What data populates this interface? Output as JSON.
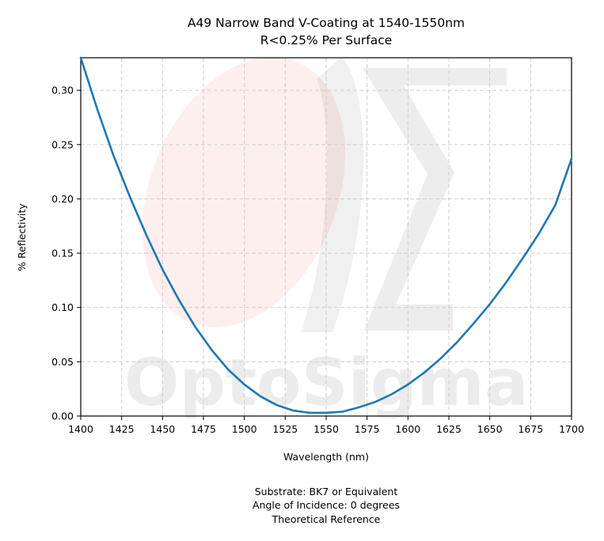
{
  "chart_data": {
    "type": "line",
    "title": [
      "A49 Narrow Band V-Coating at 1540-1550nm",
      "R<0.25% Per Surface"
    ],
    "xlabel": "Wavelength (nm)",
    "ylabel": "% Reflectivity",
    "xlim": [
      1400,
      1700
    ],
    "ylim": [
      0,
      0.33
    ],
    "xticks": [
      1400,
      1425,
      1450,
      1475,
      1500,
      1525,
      1550,
      1575,
      1600,
      1625,
      1650,
      1675,
      1700
    ],
    "xtick_labels": [
      "1400",
      "1425",
      "1450",
      "1475",
      "1500",
      "1525",
      "1550",
      "1575",
      "1600",
      "1625",
      "1650",
      "1675",
      "1700"
    ],
    "yticks": [
      0,
      0.05,
      0.1,
      0.15,
      0.2,
      0.25,
      0.3
    ],
    "ytick_labels": [
      "0.00",
      "0.05",
      "0.10",
      "0.15",
      "0.20",
      "0.25",
      "0.30"
    ],
    "grid": true,
    "series": [
      {
        "color": "#1f77b4",
        "x": [
          1400,
          1410,
          1420,
          1430,
          1440,
          1450,
          1460,
          1470,
          1480,
          1490,
          1500,
          1510,
          1520,
          1530,
          1540,
          1550,
          1560,
          1570,
          1580,
          1590,
          1600,
          1610,
          1620,
          1630,
          1640,
          1650,
          1660,
          1670,
          1680,
          1690,
          1700
        ],
        "y": [
          0.33,
          0.283,
          0.24,
          0.202,
          0.167,
          0.135,
          0.107,
          0.082,
          0.061,
          0.043,
          0.029,
          0.018,
          0.01,
          0.005,
          0.003,
          0.003,
          0.004,
          0.008,
          0.013,
          0.02,
          0.029,
          0.04,
          0.053,
          0.068,
          0.085,
          0.103,
          0.123,
          0.145,
          0.168,
          0.194,
          0.237
        ]
      }
    ],
    "footer": [
      "Substrate: BK7 or Equivalent",
      "Angle of Incidence: 0 degrees",
      "Theoretical Reference"
    ],
    "watermark": "OptoSigma"
  }
}
